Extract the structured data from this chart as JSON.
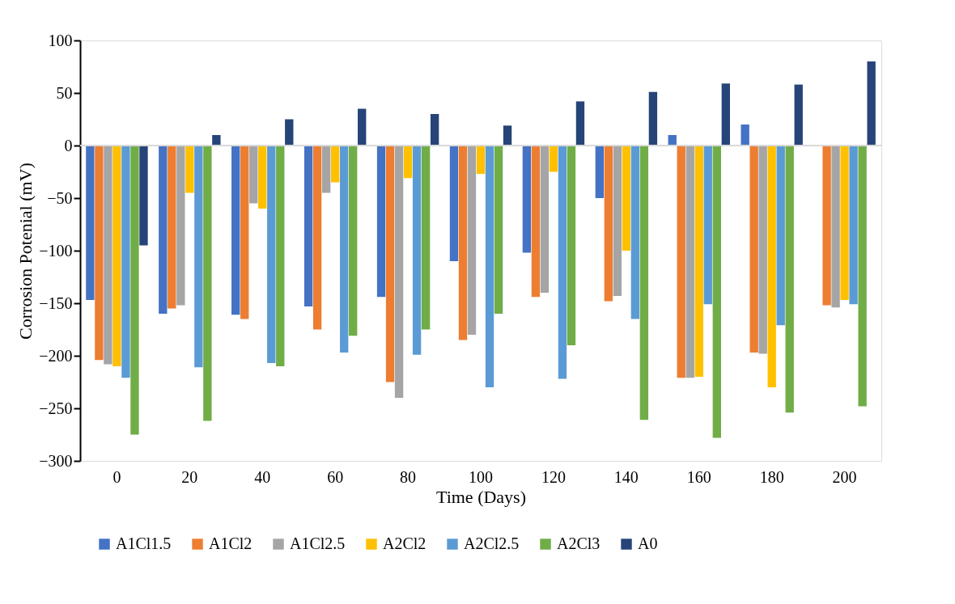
{
  "chart_data": {
    "type": "bar",
    "xlabel": "Time (Days)",
    "ylabel": "Corrosion Potenial (mV)",
    "categories": [
      "0",
      "20",
      "40",
      "60",
      "80",
      "100",
      "120",
      "140",
      "160",
      "180",
      "200"
    ],
    "series": [
      {
        "name": "A1Cl1.5",
        "color": "#4472c4",
        "values": [
          -147,
          -160,
          -161,
          -153,
          -144,
          -110,
          -102,
          -50,
          10,
          20,
          null
        ]
      },
      {
        "name": "A1Cl2",
        "color": "#ed7d31",
        "values": [
          -204,
          -155,
          -165,
          -175,
          -225,
          -185,
          -144,
          -148,
          -221,
          -197,
          -152
        ]
      },
      {
        "name": "A1Cl2.5",
        "color": "#a5a5a5",
        "values": [
          -208,
          -152,
          -55,
          -45,
          -240,
          -180,
          -140,
          -143,
          -221,
          -198,
          -154
        ]
      },
      {
        "name": "A2Cl2",
        "color": "#ffc000",
        "values": [
          -210,
          -45,
          -60,
          -35,
          -31,
          -27,
          -25,
          -100,
          -220,
          -230,
          -147
        ]
      },
      {
        "name": "A2Cl2.5",
        "color": "#5b9bd5",
        "values": [
          -221,
          -211,
          -207,
          -197,
          -199,
          -230,
          -222,
          -165,
          -151,
          -171,
          -151
        ]
      },
      {
        "name": "A2Cl3",
        "color": "#70ad47",
        "values": [
          -275,
          -262,
          -210,
          -181,
          -175,
          -160,
          -190,
          -261,
          -278,
          -254,
          -248
        ]
      },
      {
        "name": "A0",
        "color": "#264478",
        "values": [
          -95,
          10,
          25,
          35,
          30,
          19,
          42,
          51,
          59,
          58,
          80
        ]
      }
    ],
    "ylim": [
      -300,
      100
    ],
    "yticks": [
      -300,
      -250,
      -200,
      -150,
      -100,
      -50,
      0,
      50,
      100
    ],
    "ref_lines": [
      {
        "axis": "y",
        "value": 0,
        "color": "#d9d9d9"
      }
    ],
    "grid": false,
    "legend": "bottom"
  }
}
